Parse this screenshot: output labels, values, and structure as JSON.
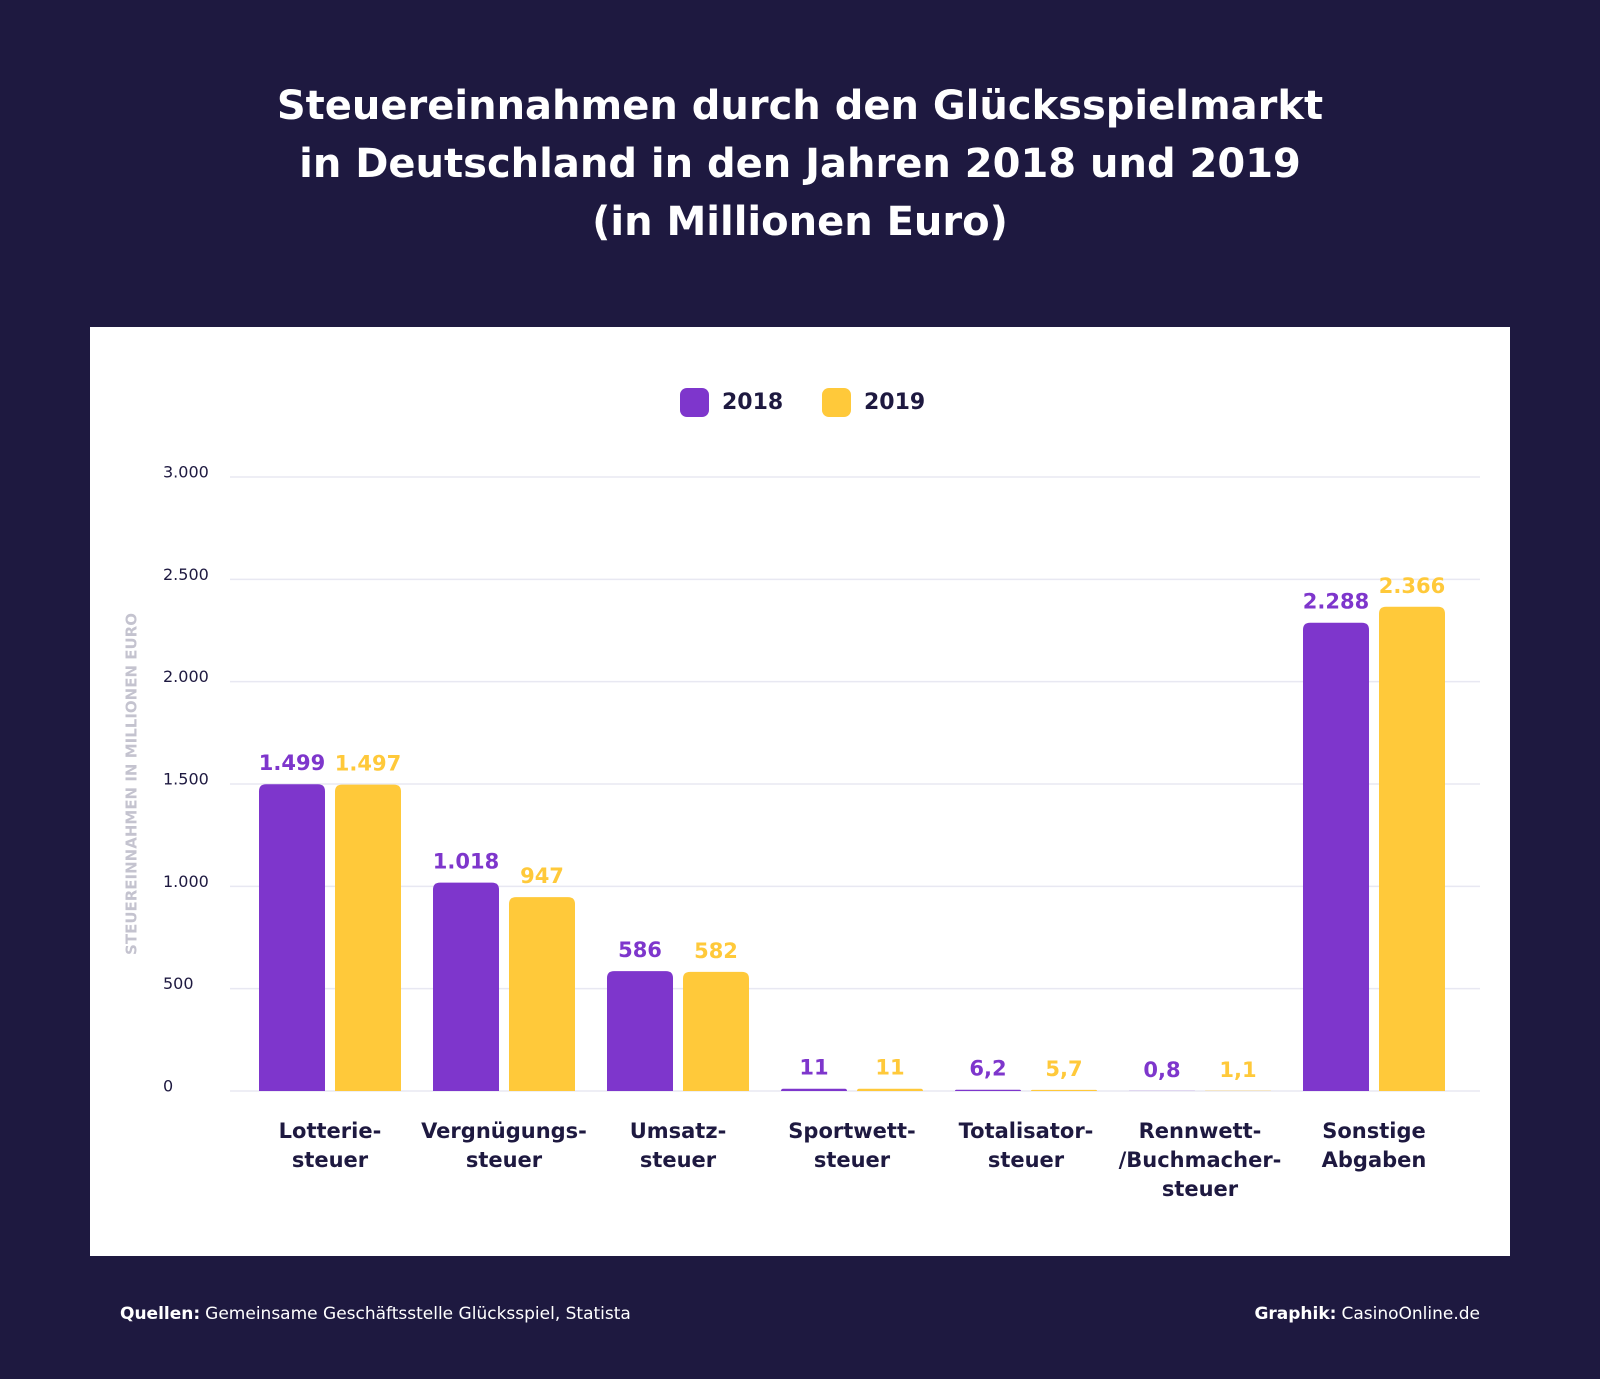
{
  "chart_data": {
    "type": "bar",
    "title": [
      "Steuereinnahmen durch den Glücksspielmarkt",
      "in Deutschland in den Jahren 2018 und 2019",
      "(in Millionen Euro)"
    ],
    "y_label": "STEUEREINNAHMEN IN MILLIONEN EURO",
    "categories": [
      [
        "Lotterie-",
        "steuer"
      ],
      [
        "Vergnügungs-",
        "steuer"
      ],
      [
        "Umsatz-",
        "steuer"
      ],
      [
        "Sportwett-",
        "steuer"
      ],
      [
        "Totalisator-",
        "steuer"
      ],
      [
        "Rennwett-",
        "/Buchmacher-",
        "steuer"
      ],
      [
        "Sonstige",
        "Abgaben"
      ]
    ],
    "series": [
      {
        "name": "2018",
        "color": "#7e36cc",
        "values": [
          1499,
          1018,
          586,
          11,
          6.2,
          0.8,
          2288
        ],
        "value_labels": [
          "1.499",
          "1.018",
          "586",
          "11",
          "6,2",
          "0,8",
          "2.288"
        ]
      },
      {
        "name": "2019",
        "color": "#ffc93a",
        "values": [
          1497,
          947,
          582,
          11,
          5.7,
          1.1,
          2366
        ],
        "value_labels": [
          "1.497",
          "947",
          "582",
          "11",
          "5,7",
          "1,1",
          "2.366"
        ]
      }
    ],
    "ylim": [
      0,
      3000
    ],
    "yticks": [
      0,
      500,
      {
        "value": 1000,
        "label": "1.000"
      },
      {
        "value": 1500,
        "label": "1.500"
      },
      {
        "value": 2000,
        "label": "2.000"
      },
      {
        "value": 2500,
        "label": "2.500"
      },
      {
        "value": 3000,
        "label": "3.000"
      }
    ],
    "grid": true
  },
  "footer": {
    "source_label": "Quellen:",
    "source": "Gemeinsame Geschäftsstelle Glücksspiel, Statista",
    "credit_label": "Graphik:",
    "credit": "CasinoOnline.de"
  }
}
